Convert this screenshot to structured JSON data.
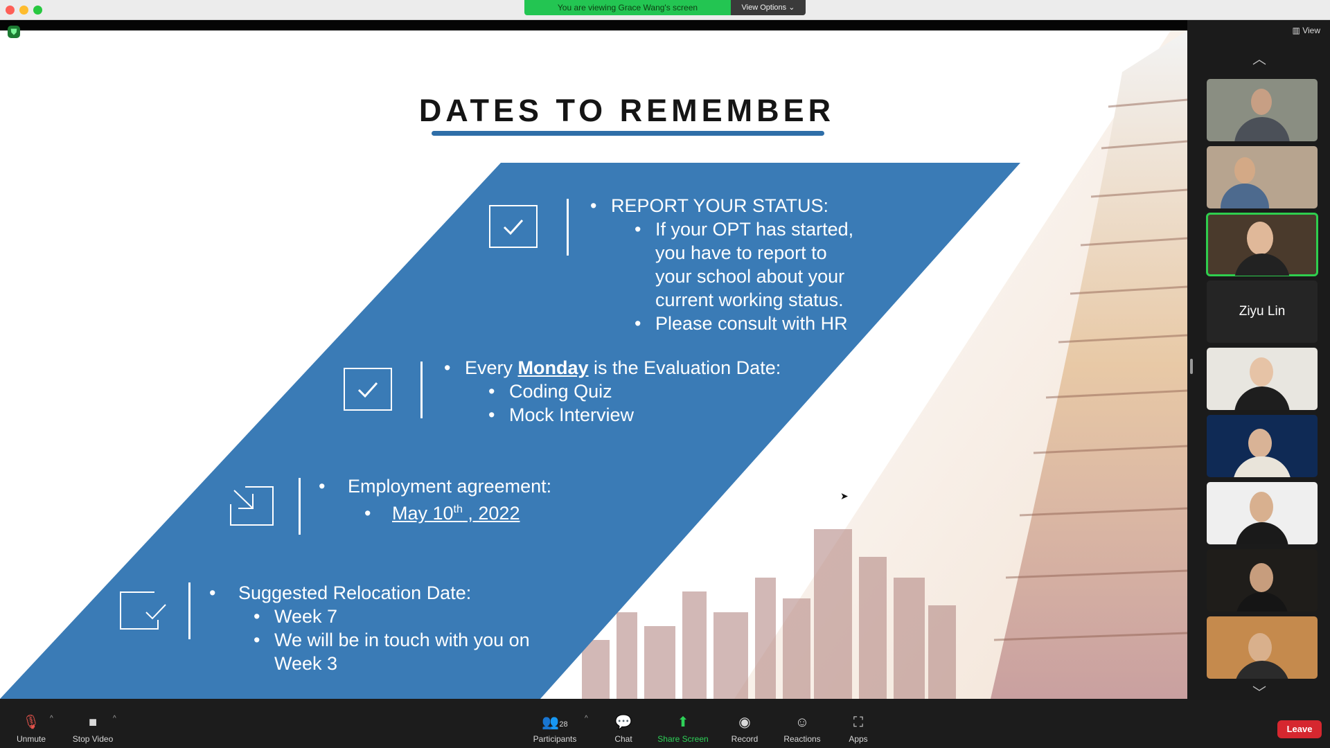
{
  "window": {
    "share_banner": "You are viewing Grace Wang's screen",
    "view_options": "View Options",
    "view_label": "View"
  },
  "slide": {
    "title": "DATES TO REMEMBER",
    "s1": {
      "heading": "REPORT YOUR STATUS:",
      "lines": [
        "If your OPT has started,",
        "you have to report to",
        "your school about your",
        "current working status."
      ],
      "last": "Please consult with HR"
    },
    "s2": {
      "pre": "Every ",
      "emph": "Monday",
      "post": " is the Evaluation Date:",
      "items": [
        "Coding Quiz",
        "Mock Interview"
      ]
    },
    "s3": {
      "heading": "Employment agreement:",
      "date_pre": "May 10",
      "date_sup": "th",
      "date_post": " , 2022"
    },
    "s4": {
      "heading": "Suggested Relocation Date:",
      "item1": "Week 7",
      "item2a": "We will be in touch with you on",
      "item2b": "Week 3"
    }
  },
  "sidebar": {
    "named_tile": "Ziyu Lin"
  },
  "toolbar": {
    "unmute": "Unmute",
    "stop_video": "Stop Video",
    "participants": "Participants",
    "participants_count": "28",
    "chat": "Chat",
    "share_screen": "Share Screen",
    "record": "Record",
    "reactions": "Reactions",
    "apps": "Apps",
    "leave": "Leave"
  },
  "colors": {
    "slide_blue": "#3a7bb6",
    "share_green": "#23c552",
    "leave_red": "#d6272f",
    "active_speaker": "#2fce4e"
  }
}
